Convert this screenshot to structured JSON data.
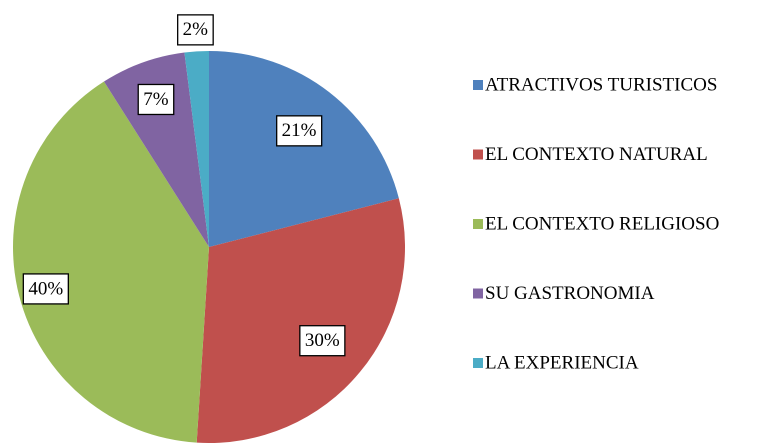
{
  "chart_data": {
    "type": "pie",
    "categories": [
      "ATRACTIVOS TURISTICOS",
      "EL CONTEXTO NATURAL",
      "EL CONTEXTO RELIGIOSO",
      "SU GASTRONOMIA",
      "LA EXPERIENCIA"
    ],
    "values": [
      21,
      30,
      40,
      7,
      2
    ],
    "value_labels": [
      "21%",
      "30%",
      "40%",
      "7%",
      "2%"
    ],
    "colors": [
      "#4f81bd",
      "#c0504d",
      "#9bbb59",
      "#8064a2",
      "#4bacc6"
    ],
    "legend": "right"
  }
}
